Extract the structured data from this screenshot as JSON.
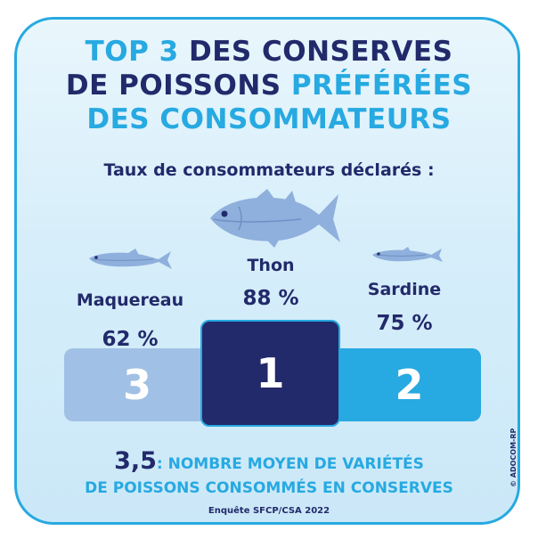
{
  "title": {
    "line1_hl": "TOP 3",
    "line1_rest": " DES CONSERVES",
    "line2_rest": "DE POISSONS ",
    "line2_hl": "PRÉFÉRÉES",
    "line3_hl": "DES CONSOMMATEURS"
  },
  "subtitle": "Taux de consommateurs déclarés :",
  "chart_data": {
    "type": "bar",
    "categories": [
      "Maquereau",
      "Thon",
      "Sardine"
    ],
    "values": [
      62,
      88,
      75
    ],
    "value_labels": [
      "62 %",
      "88 %",
      "75 %"
    ],
    "ranks": [
      "3",
      "1",
      "2"
    ],
    "unit": "%"
  },
  "footer": {
    "number": "3,5",
    "line1_text": ": NOMBRE MOYEN DE VARIÉTÉS",
    "line2_text": "DE POISSONS CONSOMMÉS EN CONSERVES"
  },
  "source": "Enquête SFCP/CSA 2022",
  "copyright": "© ADOCOM-RP",
  "colors": {
    "navy": "#222a6b",
    "accent": "#27a9e1",
    "light_blue": "#a1c0e5",
    "background": "#d6eefa"
  },
  "icons": [
    "tuna-icon",
    "mackerel-icon",
    "sardine-icon"
  ]
}
